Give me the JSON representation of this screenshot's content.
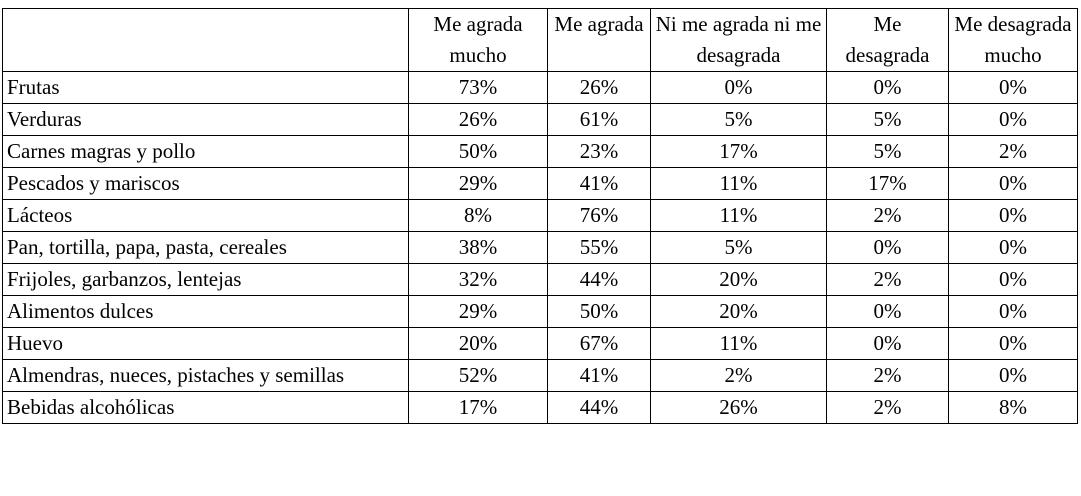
{
  "table": {
    "headers": [
      "",
      "Me agrada mucho",
      "Me agrada",
      "Ni me agrada ni me desagrada",
      "Me desagrada",
      "Me desagrada mucho"
    ],
    "rows": [
      {
        "label": "Frutas",
        "values": [
          "73%",
          "26%",
          "0%",
          "0%",
          "0%"
        ]
      },
      {
        "label": "Verduras",
        "values": [
          "26%",
          "61%",
          "5%",
          "5%",
          "0%"
        ]
      },
      {
        "label": "Carnes magras y pollo",
        "values": [
          "50%",
          "23%",
          "17%",
          "5%",
          "2%"
        ]
      },
      {
        "label": "Pescados y mariscos",
        "values": [
          "29%",
          "41%",
          "11%",
          "17%",
          "0%"
        ]
      },
      {
        "label": "Lácteos",
        "values": [
          "8%",
          "76%",
          "11%",
          "2%",
          "0%"
        ]
      },
      {
        "label": "Pan, tortilla, papa, pasta, cereales",
        "values": [
          "38%",
          "55%",
          "5%",
          "0%",
          "0%"
        ]
      },
      {
        "label": "Frijoles, garbanzos, lentejas",
        "values": [
          "32%",
          "44%",
          "20%",
          "2%",
          "0%"
        ]
      },
      {
        "label": "Alimentos dulces",
        "values": [
          "29%",
          "50%",
          "20%",
          "0%",
          "0%"
        ]
      },
      {
        "label": "Huevo",
        "values": [
          "20%",
          "67%",
          "11%",
          "0%",
          "0%"
        ]
      },
      {
        "label": "Almendras, nueces, pistaches y semillas",
        "values": [
          "52%",
          "41%",
          "2%",
          "2%",
          "0%"
        ]
      },
      {
        "label": "Bebidas alcohólicas",
        "values": [
          "17%",
          "44%",
          "26%",
          "2%",
          "8%"
        ]
      }
    ]
  }
}
